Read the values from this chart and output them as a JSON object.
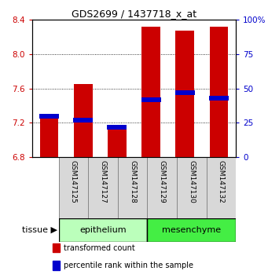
{
  "title": "GDS2699 / 1437718_x_at",
  "samples": [
    "GSM147125",
    "GSM147127",
    "GSM147128",
    "GSM147129",
    "GSM147130",
    "GSM147132"
  ],
  "groups": [
    "epithelium",
    "epithelium",
    "epithelium",
    "mesenchyme",
    "mesenchyme",
    "mesenchyme"
  ],
  "transformed_count": [
    7.28,
    7.65,
    7.12,
    8.32,
    8.27,
    8.32
  ],
  "percentile_rank": [
    30,
    27,
    22,
    42,
    47,
    43
  ],
  "ylim_left": [
    6.8,
    8.4
  ],
  "ylim_right": [
    0,
    100
  ],
  "yticks_left": [
    6.8,
    7.2,
    7.6,
    8.0,
    8.4
  ],
  "yticks_right": [
    0,
    25,
    50,
    75,
    100
  ],
  "ytick_labels_right": [
    "0",
    "25",
    "50",
    "75",
    "100%"
  ],
  "bar_bottom": 6.8,
  "bar_width": 0.55,
  "red_color": "#cc0000",
  "blue_color": "#0000cc",
  "epi_color": "#bbffbb",
  "mes_color": "#44ee44",
  "tissue_label": "tissue",
  "legend_items": [
    "transformed count",
    "percentile rank within the sample"
  ],
  "bg_color": "#d8d8d8",
  "plot_bg": "white"
}
